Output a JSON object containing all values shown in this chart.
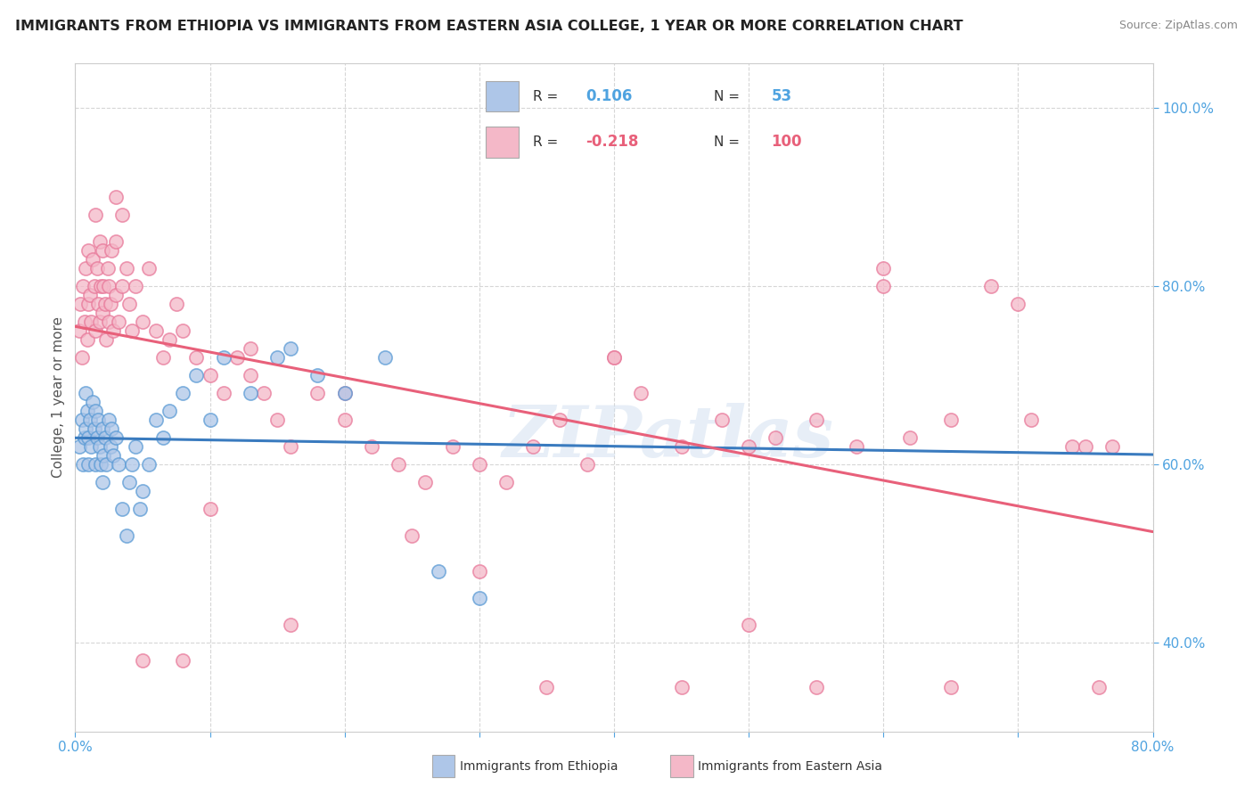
{
  "title": "IMMIGRANTS FROM ETHIOPIA VS IMMIGRANTS FROM EASTERN ASIA COLLEGE, 1 YEAR OR MORE CORRELATION CHART",
  "source_text": "Source: ZipAtlas.com",
  "ylabel": "College, 1 year or more",
  "x_min": 0.0,
  "x_max": 0.8,
  "y_min": 0.3,
  "y_max": 1.05,
  "x_ticks": [
    0.0,
    0.1,
    0.2,
    0.3,
    0.4,
    0.5,
    0.6,
    0.7,
    0.8
  ],
  "x_tick_labels": [
    "0.0%",
    "",
    "",
    "",
    "",
    "",
    "",
    "",
    "80.0%"
  ],
  "y_ticks": [
    0.4,
    0.6,
    0.8,
    1.0
  ],
  "y_tick_labels": [
    "40.0%",
    "60.0%",
    "80.0%",
    "100.0%"
  ],
  "blue_R": 0.106,
  "blue_N": 53,
  "pink_R": -0.218,
  "pink_N": 100,
  "blue_color": "#aec6e8",
  "pink_color": "#f4b8c8",
  "blue_edge_color": "#5b9bd5",
  "pink_edge_color": "#e8799a",
  "blue_line_color": "#3a7bbf",
  "pink_line_color": "#e8607a",
  "blue_legend_color": "#aec6e8",
  "pink_legend_color": "#f4b8c8",
  "blue_scatter_x": [
    0.003,
    0.005,
    0.006,
    0.007,
    0.008,
    0.008,
    0.009,
    0.01,
    0.01,
    0.011,
    0.012,
    0.013,
    0.014,
    0.015,
    0.015,
    0.016,
    0.017,
    0.018,
    0.019,
    0.02,
    0.02,
    0.021,
    0.022,
    0.023,
    0.025,
    0.026,
    0.027,
    0.028,
    0.03,
    0.032,
    0.035,
    0.038,
    0.04,
    0.042,
    0.045,
    0.048,
    0.05,
    0.055,
    0.06,
    0.065,
    0.07,
    0.08,
    0.09,
    0.1,
    0.11,
    0.13,
    0.15,
    0.16,
    0.18,
    0.2,
    0.23,
    0.27,
    0.3
  ],
  "blue_scatter_y": [
    0.62,
    0.65,
    0.6,
    0.63,
    0.68,
    0.64,
    0.66,
    0.63,
    0.6,
    0.65,
    0.62,
    0.67,
    0.64,
    0.66,
    0.6,
    0.63,
    0.65,
    0.62,
    0.6,
    0.64,
    0.58,
    0.61,
    0.63,
    0.6,
    0.65,
    0.62,
    0.64,
    0.61,
    0.63,
    0.6,
    0.55,
    0.52,
    0.58,
    0.6,
    0.62,
    0.55,
    0.57,
    0.6,
    0.65,
    0.63,
    0.66,
    0.68,
    0.7,
    0.65,
    0.72,
    0.68,
    0.72,
    0.73,
    0.7,
    0.68,
    0.72,
    0.48,
    0.45
  ],
  "pink_scatter_x": [
    0.003,
    0.004,
    0.005,
    0.006,
    0.007,
    0.008,
    0.009,
    0.01,
    0.01,
    0.011,
    0.012,
    0.013,
    0.014,
    0.015,
    0.015,
    0.016,
    0.017,
    0.018,
    0.018,
    0.019,
    0.02,
    0.02,
    0.021,
    0.022,
    0.023,
    0.024,
    0.025,
    0.025,
    0.026,
    0.027,
    0.028,
    0.03,
    0.03,
    0.032,
    0.035,
    0.035,
    0.038,
    0.04,
    0.042,
    0.045,
    0.05,
    0.055,
    0.06,
    0.065,
    0.07,
    0.075,
    0.08,
    0.09,
    0.1,
    0.11,
    0.12,
    0.13,
    0.14,
    0.15,
    0.16,
    0.18,
    0.2,
    0.22,
    0.24,
    0.26,
    0.28,
    0.3,
    0.32,
    0.34,
    0.36,
    0.38,
    0.4,
    0.42,
    0.45,
    0.48,
    0.5,
    0.52,
    0.55,
    0.58,
    0.6,
    0.62,
    0.65,
    0.68,
    0.71,
    0.74,
    0.03,
    0.05,
    0.08,
    0.1,
    0.13,
    0.16,
    0.2,
    0.25,
    0.3,
    0.35,
    0.4,
    0.45,
    0.5,
    0.55,
    0.6,
    0.65,
    0.7,
    0.75,
    0.76,
    0.77
  ],
  "pink_scatter_y": [
    0.75,
    0.78,
    0.72,
    0.8,
    0.76,
    0.82,
    0.74,
    0.78,
    0.84,
    0.79,
    0.76,
    0.83,
    0.8,
    0.75,
    0.88,
    0.82,
    0.78,
    0.85,
    0.76,
    0.8,
    0.84,
    0.77,
    0.8,
    0.78,
    0.74,
    0.82,
    0.76,
    0.8,
    0.78,
    0.84,
    0.75,
    0.79,
    0.85,
    0.76,
    0.8,
    0.88,
    0.82,
    0.78,
    0.75,
    0.8,
    0.76,
    0.82,
    0.75,
    0.72,
    0.74,
    0.78,
    0.75,
    0.72,
    0.7,
    0.68,
    0.72,
    0.7,
    0.68,
    0.65,
    0.62,
    0.68,
    0.65,
    0.62,
    0.6,
    0.58,
    0.62,
    0.6,
    0.58,
    0.62,
    0.65,
    0.6,
    0.72,
    0.68,
    0.62,
    0.65,
    0.62,
    0.63,
    0.65,
    0.62,
    0.8,
    0.63,
    0.65,
    0.8,
    0.65,
    0.62,
    0.9,
    0.38,
    0.38,
    0.55,
    0.73,
    0.42,
    0.68,
    0.52,
    0.48,
    0.35,
    0.72,
    0.35,
    0.42,
    0.35,
    0.82,
    0.35,
    0.78,
    0.62,
    0.35,
    0.62
  ],
  "watermark_text": "ZIPatlas",
  "background_color": "#ffffff",
  "grid_color": "#cccccc",
  "tick_color": "#4fa3e0",
  "label_color": "#555555",
  "legend_label_blue": "Immigrants from Ethiopia",
  "legend_label_pink": "Immigrants from Eastern Asia"
}
